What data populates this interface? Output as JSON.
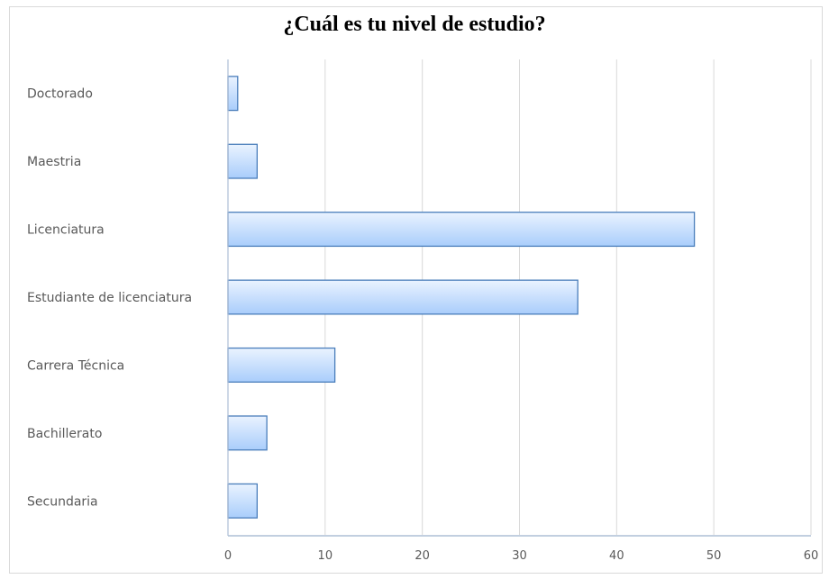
{
  "chart_data": {
    "type": "bar",
    "orientation": "horizontal",
    "title": "¿Cuál es tu nivel de estudio?",
    "categories": [
      "Doctorado",
      "Maestria",
      "Licenciatura",
      "Estudiante de licenciatura",
      "Carrera Técnica",
      "Bachillerato",
      "Secundaria"
    ],
    "values": [
      1,
      3,
      48,
      36,
      11,
      4,
      3
    ],
    "xlim": [
      0,
      60
    ],
    "xticks": [
      0,
      10,
      20,
      30,
      40,
      50,
      60
    ],
    "grid": true,
    "legend": "none",
    "colors": {
      "bar_fill_light": "#eaf3ff",
      "bar_fill_dark": "#a9cdfb",
      "bar_edge": "#4a7ebb",
      "gridline": "#d9d9d9",
      "axis": "#aebfd6"
    }
  }
}
